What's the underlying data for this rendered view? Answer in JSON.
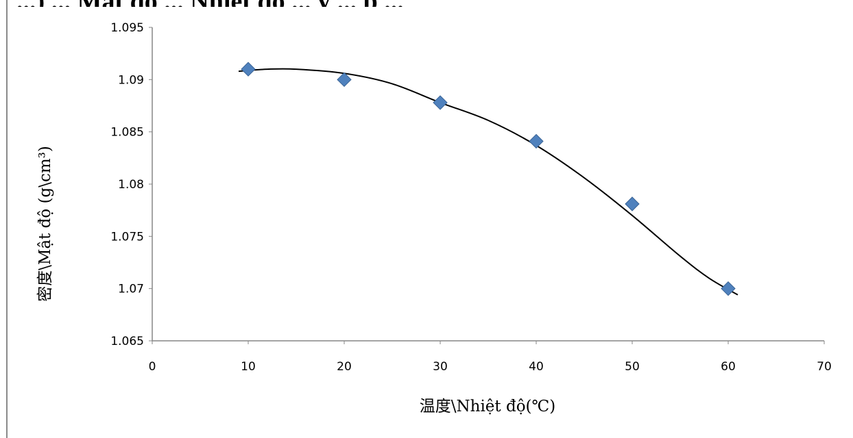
{
  "cut_heading": "...) ... Mật độ ... Nhiệt độ ... y ... p ...",
  "chart_data": {
    "type": "scatter",
    "title": "",
    "xlabel": "温度\\Nhiệt độ(℃)",
    "ylabel": "密度\\Mật độ (g\\cm³)",
    "xlim": [
      0,
      70
    ],
    "ylim": [
      1.065,
      1.095
    ],
    "x_ticks": [
      0,
      10,
      20,
      30,
      40,
      50,
      60,
      70
    ],
    "y_ticks": [
      1.065,
      1.07,
      1.075,
      1.08,
      1.085,
      1.09,
      1.095
    ],
    "y_tick_labels": [
      "1.065",
      "1.07",
      "1.075",
      "1.08",
      "1.085",
      "1.09",
      "1.095"
    ],
    "series": [
      {
        "x": [
          10,
          20,
          30,
          40,
          50,
          60
        ],
        "y": [
          1.091,
          1.09,
          1.0878,
          1.0841,
          1.0781,
          1.07
        ],
        "marker": "diamond",
        "color": "#4f81bd"
      }
    ],
    "trendline": {
      "type": "polynomial",
      "x_range": [
        9,
        61
      ],
      "points": [
        [
          9,
          1.0908
        ],
        [
          12,
          1.091
        ],
        [
          15,
          1.091
        ],
        [
          20,
          1.0906
        ],
        [
          25,
          1.0896
        ],
        [
          30,
          1.0878
        ],
        [
          35,
          1.0861
        ],
        [
          40,
          1.0837
        ],
        [
          45,
          1.0806
        ],
        [
          50,
          1.077
        ],
        [
          55,
          1.0731
        ],
        [
          58,
          1.071
        ],
        [
          61,
          1.0694
        ]
      ],
      "color": "#000000"
    },
    "grid": false,
    "legend": "none"
  }
}
